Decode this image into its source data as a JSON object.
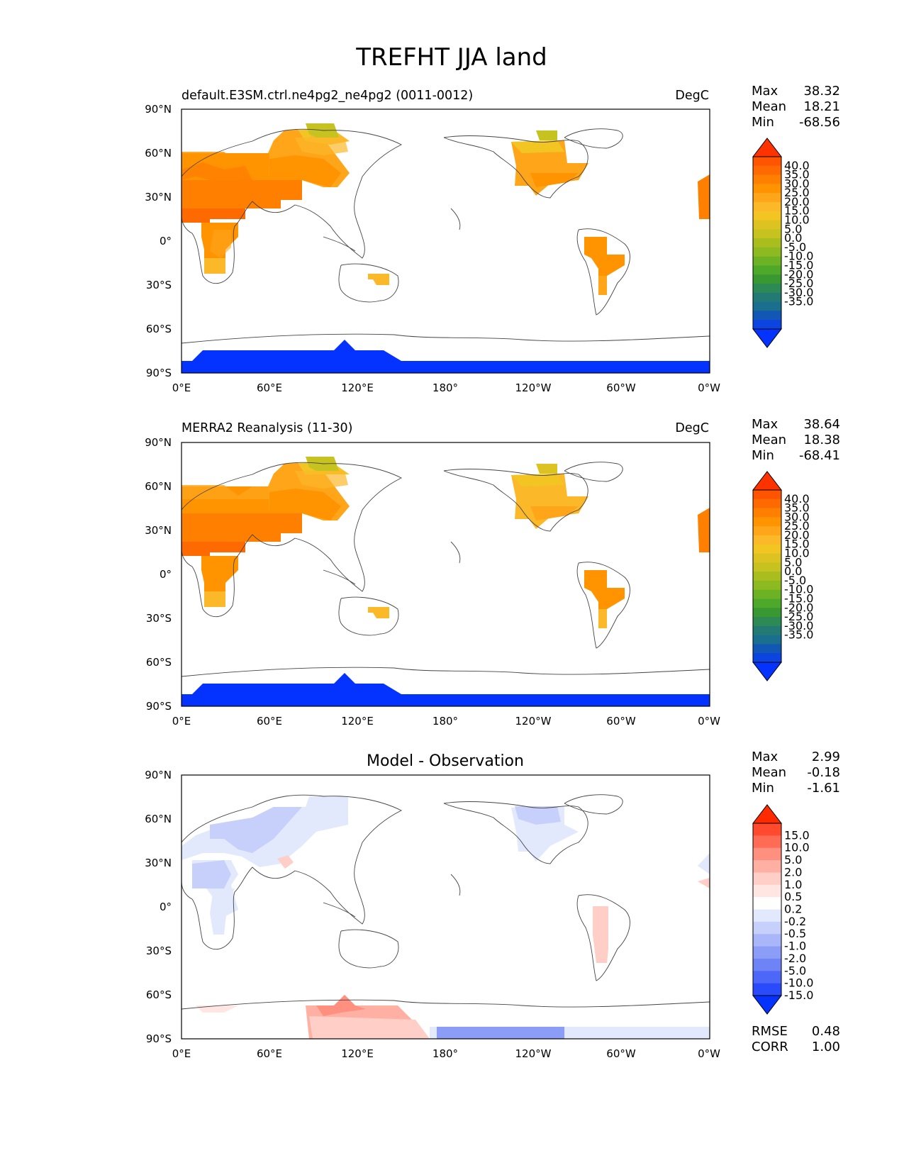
{
  "figure": {
    "title": "TREFHT JJA land"
  },
  "lat_ticks": [
    "90°N",
    "60°N",
    "30°N",
    "0°",
    "30°S",
    "60°S",
    "90°S"
  ],
  "lon_ticks": [
    "0°E",
    "60°E",
    "120°E",
    "180°",
    "120°W",
    "60°W",
    "0°W"
  ],
  "panels": [
    {
      "name": "test",
      "left_title": "default.E3SM.ctrl.ne4pg2_ne4pg2 (0011-0012)",
      "center_title": "",
      "right_title": "DegC",
      "stats": {
        "max": "38.32",
        "mean": "18.21",
        "min": "-68.56"
      },
      "stat_labels": [
        "Max",
        "Mean",
        "Min"
      ],
      "colorbar_labels": [
        "40.0",
        "35.0",
        "30.0",
        "25.0",
        "20.0",
        "15.0",
        "10.0",
        "5.0",
        "0.0",
        "-5.0",
        "-10.0",
        "-15.0",
        "-20.0",
        "-25.0",
        "-30.0",
        "-35.0"
      ]
    },
    {
      "name": "reference",
      "left_title": "MERRA2 Reanalysis (11-30)",
      "center_title": "",
      "right_title": "DegC",
      "stats": {
        "max": "38.64",
        "mean": "18.38",
        "min": "-68.41"
      },
      "stat_labels": [
        "Max",
        "Mean",
        "Min"
      ],
      "colorbar_labels": [
        "40.0",
        "35.0",
        "30.0",
        "25.0",
        "20.0",
        "15.0",
        "10.0",
        "5.0",
        "0.0",
        "-5.0",
        "-10.0",
        "-15.0",
        "-20.0",
        "-25.0",
        "-30.0",
        "-35.0"
      ]
    },
    {
      "name": "difference",
      "left_title": "",
      "center_title": "Model - Observation",
      "right_title": "",
      "stats": {
        "max": "2.99",
        "mean": "-0.18",
        "min": "-1.61"
      },
      "stat_labels": [
        "Max",
        "Mean",
        "Min"
      ],
      "colorbar_labels": [
        "15.0",
        "10.0",
        "5.0",
        "2.0",
        "1.0",
        "0.5",
        "0.2",
        "-0.2",
        "-0.5",
        "-1.0",
        "-2.0",
        "-5.0",
        "-10.0",
        "-15.0"
      ],
      "metrics": {
        "rmse_label": "RMSE",
        "rmse": "0.48",
        "corr_label": "CORR",
        "corr": "1.00"
      }
    }
  ],
  "colors": {
    "temperature_scale": [
      "#ff3300",
      "#ff5500",
      "#ff6a00",
      "#ff8000",
      "#ff9300",
      "#ffa51a",
      "#fbb829",
      "#f2c522",
      "#dcc322",
      "#c6c21f",
      "#a9bd1f",
      "#8cba20",
      "#6db224",
      "#4ea92a",
      "#3a9833",
      "#2e8a55",
      "#237a74",
      "#1a6e8e",
      "#1257b5",
      "#0b44e0",
      "#0433ff"
    ],
    "difference_scale": [
      "#ff2a00",
      "#ff4a2e",
      "#ff6b55",
      "#ff8f7e",
      "#ffb0a3",
      "#ffcec6",
      "#ffe6e2",
      "#ffffff",
      "#e3e9fd",
      "#c6d0fb",
      "#a9b6f9",
      "#8c9df7",
      "#6d83f6",
      "#4d68f8",
      "#2a4bfb",
      "#0433ff"
    ],
    "land_outline": "#444444"
  }
}
